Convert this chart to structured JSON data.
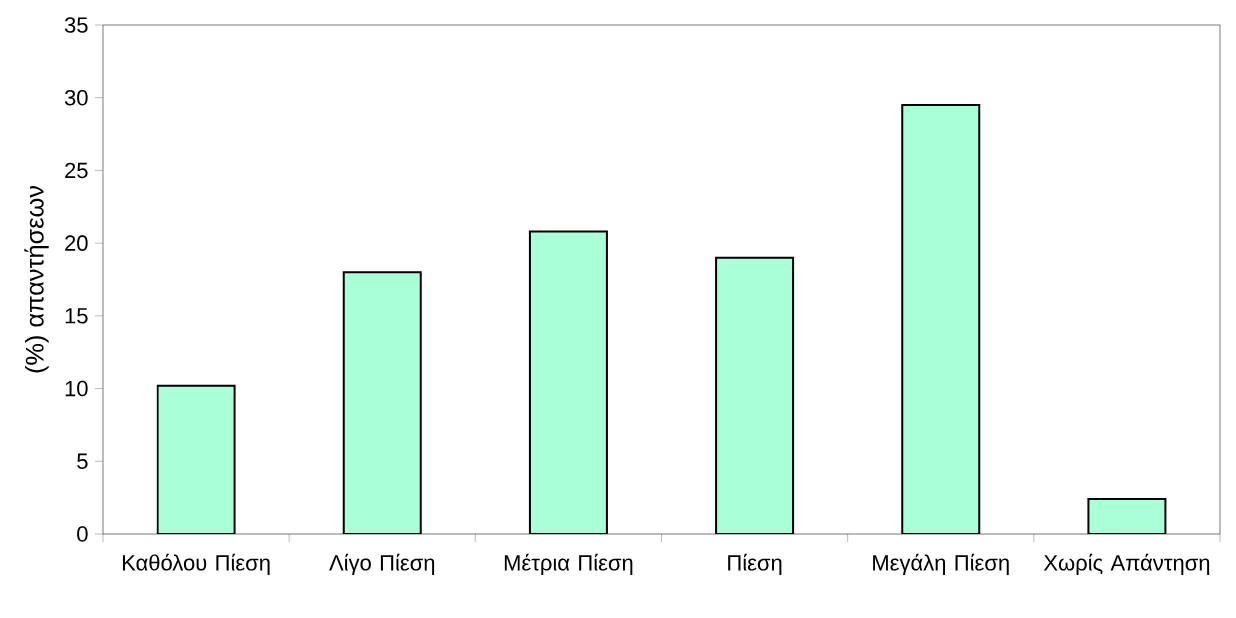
{
  "chart_data": {
    "type": "bar",
    "ylabel": "(%) απαντήσεων",
    "categories": [
      "Καθόλου Πίεση",
      "Λίγο Πίεση",
      "Μέτρια Πίεση",
      "Πίεση",
      "Μεγάλη Πίεση",
      "Χωρίς Απάντηση"
    ],
    "values": [
      10.2,
      18.0,
      20.8,
      19.0,
      29.5,
      2.4
    ],
    "color": "#a8ffd8",
    "ylim": [
      0,
      35
    ],
    "yticks": [
      0,
      5,
      10,
      15,
      20,
      25,
      30,
      35
    ],
    "grid": false
  }
}
